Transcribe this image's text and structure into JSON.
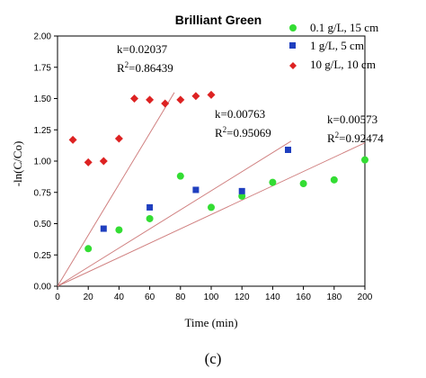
{
  "chart_data": {
    "type": "scatter",
    "title": "Brilliant Green",
    "xlabel": "Time (min)",
    "ylabel": "-ln(C/Co)",
    "xlim": [
      0,
      200
    ],
    "ylim": [
      0,
      2.0
    ],
    "x_ticks": [
      "0",
      "20",
      "40",
      "60",
      "80",
      "100",
      "120",
      "140",
      "160",
      "180",
      "200"
    ],
    "y_ticks": [
      "0.00",
      "0.25",
      "0.50",
      "0.75",
      "1.00",
      "1.25",
      "1.50",
      "1.75",
      "2.00"
    ],
    "grid": false,
    "legend_position": "top-right",
    "series": [
      {
        "name": "0.1 g/L, 15 cm",
        "marker": "circle",
        "color": "#33dd33",
        "x": [
          20,
          40,
          60,
          80,
          100,
          120,
          140,
          160,
          180,
          200
        ],
        "y": [
          0.3,
          0.45,
          0.54,
          0.88,
          0.63,
          0.72,
          0.83,
          0.82,
          0.85,
          1.01
        ]
      },
      {
        "name": "1 g/L, 5 cm",
        "marker": "square",
        "color": "#1f3fbf",
        "x": [
          30,
          60,
          90,
          120,
          150
        ],
        "y": [
          0.46,
          0.63,
          0.77,
          0.76,
          1.09
        ]
      },
      {
        "name": "10 g/L, 10 cm",
        "marker": "diamond",
        "color": "#dd2222",
        "x": [
          10,
          20,
          30,
          40,
          50,
          60,
          70,
          80,
          90,
          100
        ],
        "y": [
          1.17,
          0.99,
          1.0,
          1.18,
          1.5,
          1.49,
          1.46,
          1.49,
          1.52,
          1.53
        ]
      }
    ],
    "fit_lines": [
      {
        "k": 0.02037,
        "x_end": 76,
        "color": "#d08080"
      },
      {
        "k": 0.00763,
        "x_end": 152,
        "color": "#d08080"
      },
      {
        "k": 0.00573,
        "x_end": 200,
        "color": "#d08080"
      }
    ],
    "annotations": [
      {
        "line1": "k=0.02037",
        "r2_value": "=0.86439"
      },
      {
        "line1": "k=0.00763",
        "r2_value": "=0.95069"
      },
      {
        "line1": "k=0.00573",
        "r2_value": "=0.92474"
      }
    ],
    "caption": "(c)"
  }
}
